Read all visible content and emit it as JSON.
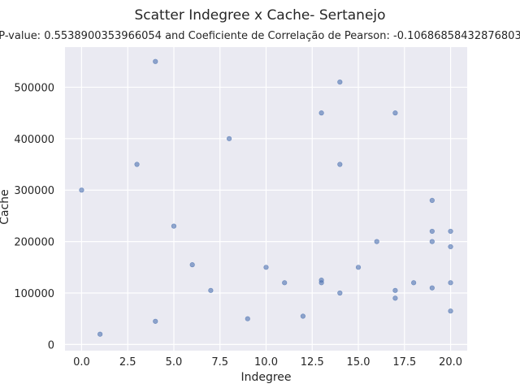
{
  "title": "Scatter Indegree x Cache- Sertanejo",
  "subtitle": "P-value: 0.5538900353966054 and Coeficiente de Correlação de Pearson: -0.10686858432876803",
  "chart_data": {
    "type": "scatter",
    "xlabel": "Indegree",
    "ylabel": "Cache",
    "xlim": [
      -0.9,
      20.9
    ],
    "ylim": [
      -12000,
      578000
    ],
    "xticks": [
      0.0,
      2.5,
      5.0,
      7.5,
      10.0,
      12.5,
      15.0,
      17.5,
      20.0
    ],
    "xtick_labels": [
      "0.0",
      "2.5",
      "5.0",
      "7.5",
      "10.0",
      "12.5",
      "15.0",
      "17.5",
      "20.0"
    ],
    "yticks": [
      0,
      100000,
      200000,
      300000,
      400000,
      500000
    ],
    "ytick_labels": [
      "0",
      "100000",
      "200000",
      "300000",
      "400000",
      "500000"
    ],
    "grid": true,
    "marker_color": "#4c72b0",
    "background_color": "#eaeaf2",
    "points": [
      {
        "x": 0,
        "y": 300000
      },
      {
        "x": 1,
        "y": 20000
      },
      {
        "x": 3,
        "y": 350000
      },
      {
        "x": 4,
        "y": 550000
      },
      {
        "x": 4,
        "y": 45000
      },
      {
        "x": 5,
        "y": 230000
      },
      {
        "x": 6,
        "y": 155000
      },
      {
        "x": 7,
        "y": 105000
      },
      {
        "x": 8,
        "y": 400000
      },
      {
        "x": 9,
        "y": 50000
      },
      {
        "x": 10,
        "y": 150000
      },
      {
        "x": 11,
        "y": 120000
      },
      {
        "x": 12,
        "y": 55000
      },
      {
        "x": 13,
        "y": 450000
      },
      {
        "x": 13,
        "y": 125000
      },
      {
        "x": 13,
        "y": 120000
      },
      {
        "x": 14,
        "y": 510000
      },
      {
        "x": 14,
        "y": 350000
      },
      {
        "x": 14,
        "y": 100000
      },
      {
        "x": 15,
        "y": 150000
      },
      {
        "x": 16,
        "y": 200000
      },
      {
        "x": 17,
        "y": 450000
      },
      {
        "x": 17,
        "y": 105000
      },
      {
        "x": 17,
        "y": 90000
      },
      {
        "x": 18,
        "y": 120000
      },
      {
        "x": 19,
        "y": 280000
      },
      {
        "x": 19,
        "y": 220000
      },
      {
        "x": 19,
        "y": 200000
      },
      {
        "x": 19,
        "y": 110000
      },
      {
        "x": 20,
        "y": 220000
      },
      {
        "x": 20,
        "y": 190000
      },
      {
        "x": 20,
        "y": 120000
      },
      {
        "x": 20,
        "y": 65000
      }
    ]
  }
}
